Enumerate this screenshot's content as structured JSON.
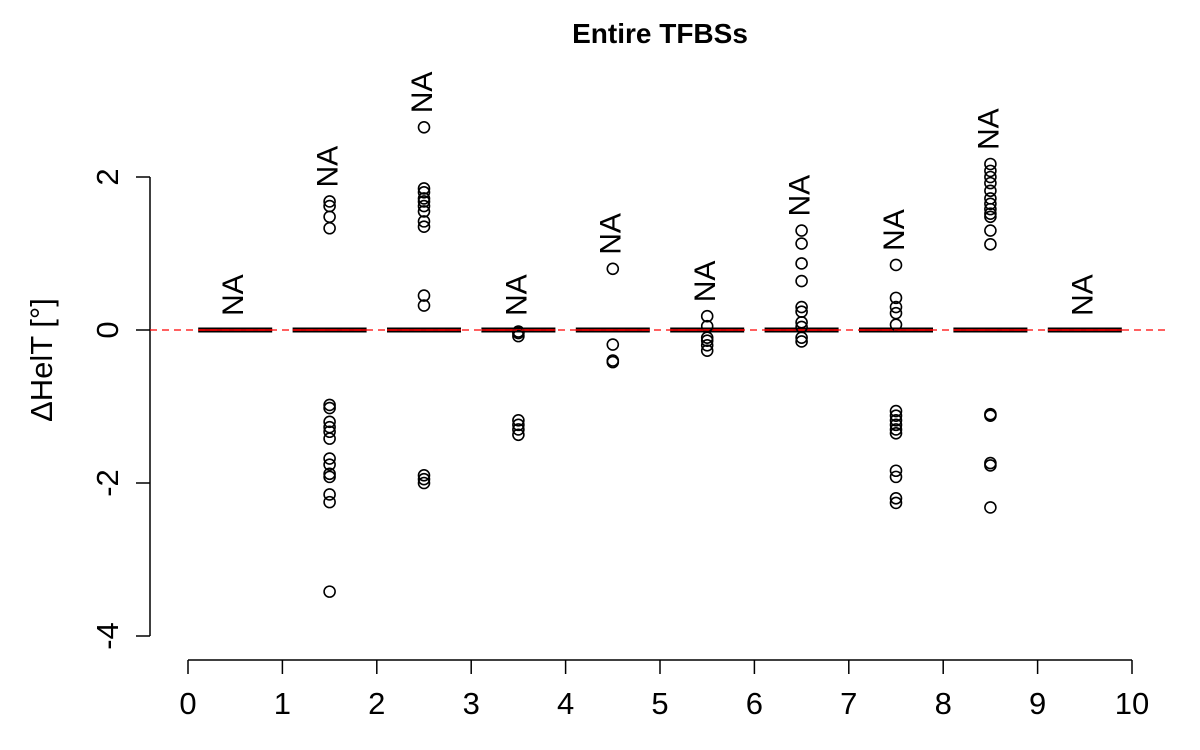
{
  "chart_data": {
    "type": "boxplot",
    "title": "Entire TFBSs",
    "ylabel": "ΔHelT [°]",
    "xlabel": "",
    "xlim": [
      0,
      10
    ],
    "ylim": [
      -4,
      3
    ],
    "x_ticks": [
      "0",
      "1",
      "2",
      "3",
      "4",
      "5",
      "6",
      "7",
      "8",
      "9",
      "10"
    ],
    "y_ticks": [
      "-4",
      "-2",
      "0",
      "2"
    ],
    "reference_line": {
      "y": 0,
      "color": "#ff0000",
      "style": "dashed"
    },
    "box_color": "#000000",
    "median_color": "#ff0000",
    "bins": [
      {
        "x": 0.5,
        "median": 0,
        "annotation": "NA",
        "outliers": []
      },
      {
        "x": 1.5,
        "median": 0,
        "annotation": "NA",
        "outliers": [
          1.68,
          1.62,
          1.48,
          1.33,
          -0.98,
          -1.02,
          -1.2,
          -1.27,
          -1.33,
          -1.42,
          -1.68,
          -1.76,
          -1.88,
          -1.92,
          -2.15,
          -2.25,
          -3.42
        ]
      },
      {
        "x": 2.5,
        "median": 0,
        "annotation": "NA",
        "outliers": [
          2.65,
          1.85,
          1.8,
          1.72,
          1.68,
          1.62,
          1.55,
          1.42,
          1.35,
          0.45,
          0.32,
          -1.9,
          -1.95,
          -2.0
        ]
      },
      {
        "x": 3.5,
        "median": 0,
        "annotation": "NA",
        "outliers": [
          -0.02,
          -0.04,
          -0.08,
          -1.18,
          -1.24,
          -1.3,
          -1.37
        ]
      },
      {
        "x": 4.5,
        "median": 0,
        "annotation": "NA",
        "outliers": [
          0.8,
          -0.19,
          -0.4,
          -0.42
        ]
      },
      {
        "x": 5.5,
        "median": 0,
        "annotation": "NA",
        "outliers": [
          0.18,
          0.05,
          -0.1,
          -0.14,
          -0.2,
          -0.27
        ]
      },
      {
        "x": 6.5,
        "median": 0,
        "annotation": "NA",
        "outliers": [
          1.3,
          1.13,
          0.87,
          0.64,
          0.3,
          0.24,
          0.1,
          0.04,
          -0.1,
          -0.15
        ]
      },
      {
        "x": 7.5,
        "median": 0,
        "annotation": "NA",
        "outliers": [
          0.85,
          0.42,
          0.3,
          0.22,
          0.07,
          -1.06,
          -1.12,
          -1.18,
          -1.24,
          -1.3,
          -1.35,
          -1.84,
          -1.92,
          -2.2,
          -2.26
        ]
      },
      {
        "x": 8.5,
        "median": 0,
        "annotation": "NA",
        "outliers": [
          2.17,
          2.08,
          2.0,
          1.92,
          1.82,
          1.72,
          1.65,
          1.58,
          1.52,
          1.48,
          1.3,
          1.12,
          -1.1,
          -1.12,
          -1.74,
          -1.77,
          -2.32
        ]
      },
      {
        "x": 9.5,
        "median": 0,
        "annotation": "NA",
        "outliers": []
      }
    ]
  }
}
